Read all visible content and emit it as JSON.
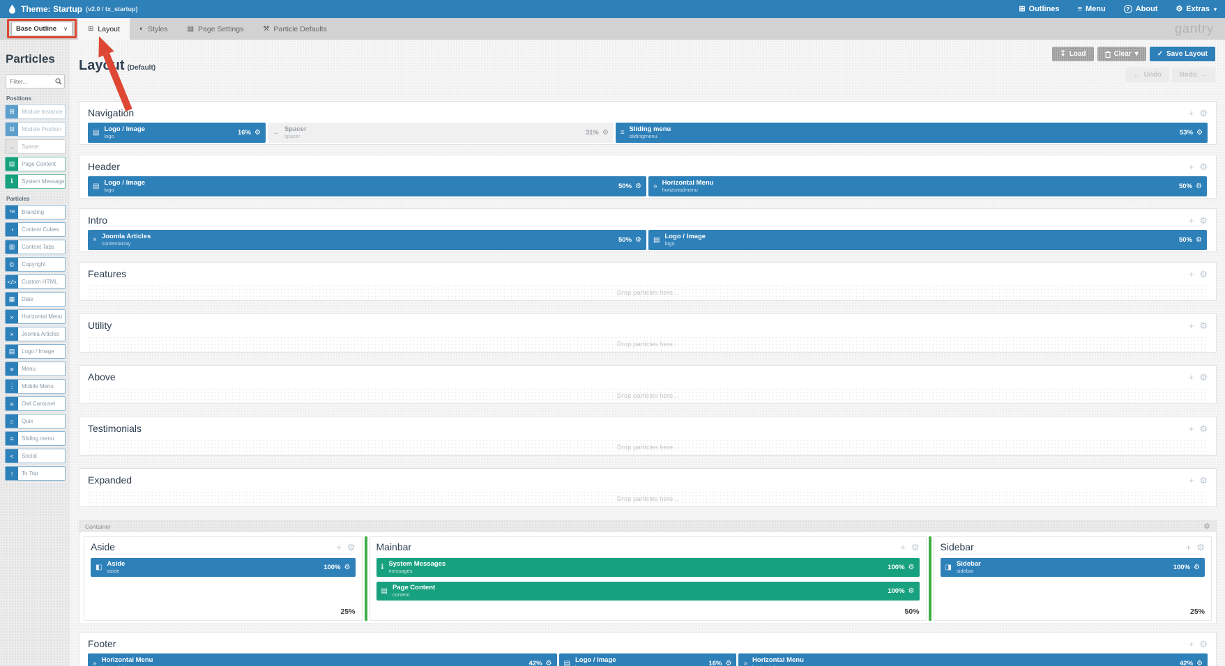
{
  "colors": {
    "topbar_blue": "#2e80b9",
    "block_blue": "#2e80b9",
    "block_green": "#18a17f",
    "handle_green": "#3fae49",
    "annotation_red": "#dd4733",
    "dark_text": "#2d3e50"
  },
  "topbar": {
    "title": "Theme: Startup",
    "version": "(v2.0 / tx_startup)",
    "menu": [
      {
        "label": "Outlines",
        "icon": "outlines-icon"
      },
      {
        "label": "Menu",
        "icon": "hamburger-icon"
      },
      {
        "label": "About",
        "icon": "about-icon"
      },
      {
        "label": "Extras",
        "icon": "extras-icon",
        "caret": "▾"
      }
    ]
  },
  "tabbar": {
    "outline_selector": {
      "value": "Base Outline",
      "caret": "∨"
    },
    "tabs": [
      {
        "label": "Layout",
        "icon": "layout-icon",
        "active": true
      },
      {
        "label": "Styles",
        "icon": "styles-icon",
        "active": false
      },
      {
        "label": "Page Settings",
        "icon": "page-settings-icon",
        "active": false
      },
      {
        "label": "Particle Defaults",
        "icon": "particle-defaults-icon",
        "active": false
      }
    ],
    "brand": "gantry"
  },
  "sidebar": {
    "title": "Particles",
    "filter_placeholder": "Filter...",
    "groups": [
      {
        "label": "Positions",
        "items": [
          {
            "label": "Module Instance",
            "icon": "module-instance-icon",
            "style": "muted-blue"
          },
          {
            "label": "Module Position",
            "icon": "module-position-icon",
            "style": "muted-blue"
          },
          {
            "label": "Spacer",
            "icon": "spacer-icon",
            "style": "muted-gray"
          },
          {
            "label": "Page Content",
            "icon": "page-content-icon",
            "style": "green"
          },
          {
            "label": "System Messages",
            "icon": "system-messages-icon",
            "style": "green"
          }
        ]
      },
      {
        "label": "Particles",
        "items": [
          {
            "label": "Branding",
            "icon": "branding-icon",
            "style": "blue"
          },
          {
            "label": "Content Cubes",
            "icon": "content-cubes-icon",
            "style": "blue"
          },
          {
            "label": "Content Tabs",
            "icon": "content-tabs-icon",
            "style": "blue"
          },
          {
            "label": "Copyright",
            "icon": "copyright-icon",
            "style": "blue"
          },
          {
            "label": "Custom HTML",
            "icon": "custom-html-icon",
            "style": "blue"
          },
          {
            "label": "Date",
            "icon": "date-icon",
            "style": "blue"
          },
          {
            "label": "Horizontal Menu",
            "icon": "horizontal-menu-icon",
            "style": "blue"
          },
          {
            "label": "Joomla Articles",
            "icon": "joomla-articles-icon",
            "style": "blue"
          },
          {
            "label": "Logo / Image",
            "icon": "logo-image-icon",
            "style": "blue"
          },
          {
            "label": "Menu",
            "icon": "menu-icon",
            "style": "blue"
          },
          {
            "label": "Mobile Menu",
            "icon": "mobile-menu-icon",
            "style": "blue"
          },
          {
            "label": "Owl Carousel",
            "icon": "owl-carousel-icon",
            "style": "blue"
          },
          {
            "label": "Quix",
            "icon": "quix-icon",
            "style": "blue"
          },
          {
            "label": "Sliding menu",
            "icon": "sliding-menu-icon",
            "style": "blue"
          },
          {
            "label": "Social",
            "icon": "social-icon",
            "style": "blue"
          },
          {
            "label": "To Top",
            "icon": "to-top-icon",
            "style": "blue"
          }
        ]
      }
    ]
  },
  "page": {
    "title": "Layout",
    "subtitle": "(Default)"
  },
  "toolbar": {
    "load": "Load",
    "clear": "Clear",
    "save": "Save Layout",
    "undo": "Undo",
    "redo": "Redo"
  },
  "drop_text": "Drop particles here...",
  "sections": [
    {
      "title": "Navigation",
      "blocks": [
        {
          "title": "Logo / Image",
          "key": "logo",
          "size": 16,
          "pct_label": "16%",
          "color": "blue",
          "icon": "logo-image-icon"
        },
        {
          "title": "Spacer",
          "key": "spacer",
          "size": 31,
          "pct_label": "31%",
          "color": "gray",
          "icon": "spacer-icon"
        },
        {
          "title": "Sliding menu",
          "key": "slidingmenu",
          "size": 53,
          "pct_label": "53%",
          "color": "blue",
          "icon": "sliding-menu-icon"
        }
      ]
    },
    {
      "title": "Header",
      "blocks": [
        {
          "title": "Logo / Image",
          "key": "logo",
          "size": 50,
          "pct_label": "50%",
          "color": "blue",
          "icon": "logo-image-icon"
        },
        {
          "title": "Horizontal Menu",
          "key": "horizontalmenu",
          "size": 50,
          "pct_label": "50%",
          "color": "blue",
          "icon": "horizontal-menu-icon"
        }
      ]
    },
    {
      "title": "Intro",
      "blocks": [
        {
          "title": "Joomla Articles",
          "key": "contentarray",
          "size": 50,
          "pct_label": "50%",
          "color": "blue",
          "icon": "joomla-articles-icon"
        },
        {
          "title": "Logo / Image",
          "key": "logo",
          "size": 50,
          "pct_label": "50%",
          "color": "blue",
          "icon": "logo-image-icon"
        }
      ]
    },
    {
      "title": "Features",
      "blocks": []
    },
    {
      "title": "Utility",
      "blocks": []
    },
    {
      "title": "Above",
      "blocks": []
    },
    {
      "title": "Testimonials",
      "blocks": []
    },
    {
      "title": "Expanded",
      "blocks": []
    }
  ],
  "container": {
    "label": "Container",
    "columns": [
      {
        "title": "Aside",
        "pct_label": "25%",
        "blocks": [
          {
            "title": "Aside",
            "key": "aside",
            "pct_label": "100%",
            "color": "blue",
            "icon": "aside-icon"
          }
        ]
      },
      {
        "title": "Mainbar",
        "pct_label": "50%",
        "blocks": [
          {
            "title": "System Messages",
            "key": "messages",
            "pct_label": "100%",
            "color": "green",
            "icon": "system-messages-icon"
          },
          {
            "title": "Page Content",
            "key": "content",
            "pct_label": "100%",
            "color": "green",
            "icon": "page-content-icon"
          }
        ]
      },
      {
        "title": "Sidebar",
        "pct_label": "25%",
        "blocks": [
          {
            "title": "Sidebar",
            "key": "sidebar",
            "pct_label": "100%",
            "color": "blue",
            "icon": "sidebar-icon"
          }
        ]
      }
    ],
    "column_sizes": [
      25,
      50,
      25
    ]
  },
  "footer_section": {
    "title": "Footer",
    "blocks": [
      {
        "title": "Horizontal Menu",
        "key": "horizontalmenu",
        "size": 42,
        "pct_label": "42%",
        "color": "blue",
        "icon": "horizontal-menu-icon"
      },
      {
        "title": "Logo / Image",
        "key": "logo",
        "size": 16,
        "pct_label": "16%",
        "color": "blue",
        "icon": "logo-image-icon"
      },
      {
        "title": "Horizontal Menu",
        "key": "horizontalmenu",
        "size": 42,
        "pct_label": "42%",
        "color": "blue",
        "icon": "horizontal-menu-icon"
      }
    ]
  },
  "icon_glyphs": {
    "outlines-icon": "⊞",
    "hamburger-icon": "≡",
    "extras-icon": "⚙",
    "layout-icon": "⊞",
    "styles-icon": "◐",
    "page-settings-icon": "▤",
    "particle-defaults-icon": "⚒",
    "module-instance-icon": "⊞",
    "module-position-icon": "⊟",
    "spacer-icon": "↔",
    "page-content-icon": "▤",
    "system-messages-icon": "ℹ",
    "branding-icon": "™",
    "content-cubes-icon": "◔",
    "content-tabs-icon": "▥",
    "copyright-icon": "©",
    "custom-html-icon": "</>",
    "date-icon": "▦",
    "horizontal-menu-icon": "»",
    "joomla-articles-icon": "×",
    "logo-image-icon": "▤",
    "menu-icon": "≡",
    "mobile-menu-icon": "⋮",
    "owl-carousel-icon": "≡",
    "quix-icon": "⌂",
    "sliding-menu-icon": "≡",
    "social-icon": "<",
    "to-top-icon": "↑",
    "aside-icon": "◧",
    "sidebar-icon": "◨",
    "plus-icon": "+",
    "gear-icon": "⚙",
    "check-icon": "✓",
    "load-icon": "↧",
    "undo-icon": "←",
    "redo-icon": "→",
    "caret-down-icon": "▾"
  }
}
